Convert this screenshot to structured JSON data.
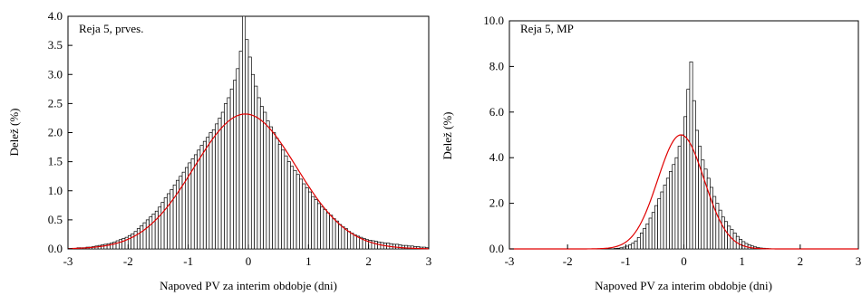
{
  "chart_data": [
    {
      "type": "bar",
      "panel_label": "Reja 5, prves.",
      "xlabel": "Napoved PV za interim obdobje (dni)",
      "ylabel": "Delež (%)",
      "xlim": [
        -3,
        3
      ],
      "ylim": [
        0,
        4.0
      ],
      "xticks": [
        -3,
        -2,
        -1,
        0,
        1,
        2,
        3
      ],
      "yticks": [
        0.0,
        0.5,
        1.0,
        1.5,
        2.0,
        2.5,
        3.0,
        3.5,
        4.0
      ],
      "ytick_decimals": 1,
      "bin_width": 0.05,
      "bin_start": -3.0,
      "values": [
        0.01,
        0.01,
        0.01,
        0.02,
        0.02,
        0.02,
        0.03,
        0.03,
        0.04,
        0.05,
        0.06,
        0.07,
        0.08,
        0.09,
        0.1,
        0.12,
        0.14,
        0.16,
        0.18,
        0.2,
        0.23,
        0.26,
        0.3,
        0.35,
        0.4,
        0.45,
        0.5,
        0.55,
        0.6,
        0.65,
        0.72,
        0.8,
        0.88,
        0.95,
        1.02,
        1.1,
        1.18,
        1.25,
        1.32,
        1.4,
        1.48,
        1.55,
        1.62,
        1.7,
        1.78,
        1.85,
        1.92,
        2.0,
        2.05,
        2.15,
        2.25,
        2.35,
        2.5,
        2.6,
        2.75,
        2.9,
        3.1,
        3.4,
        4.0,
        3.6,
        3.3,
        3.0,
        2.8,
        2.6,
        2.45,
        2.35,
        2.2,
        2.1,
        2.0,
        1.9,
        1.8,
        1.7,
        1.6,
        1.5,
        1.42,
        1.35,
        1.28,
        1.2,
        1.12,
        1.05,
        0.98,
        0.9,
        0.85,
        0.78,
        0.72,
        0.68,
        0.62,
        0.58,
        0.52,
        0.48,
        0.42,
        0.38,
        0.35,
        0.3,
        0.27,
        0.24,
        0.22,
        0.2,
        0.18,
        0.16,
        0.15,
        0.14,
        0.13,
        0.12,
        0.11,
        0.1,
        0.1,
        0.09,
        0.08,
        0.08,
        0.07,
        0.06,
        0.06,
        0.05,
        0.05,
        0.04,
        0.04,
        0.03,
        0.03,
        0.02
      ],
      "fit_curve": {
        "type": "normal",
        "mean": -0.05,
        "sd": 0.85,
        "peak": 2.32,
        "color": "#e00000"
      }
    },
    {
      "type": "bar",
      "panel_label": "Reja 5, MP",
      "xlabel": "Napoved PV za interim obdobje (dni)",
      "ylabel": "Delež (%)",
      "xlim": [
        -3,
        3
      ],
      "ylim": [
        0,
        10.0
      ],
      "xticks": [
        -3,
        -2,
        -1,
        0,
        1,
        2,
        3
      ],
      "yticks": [
        0.0,
        2.0,
        4.0,
        6.0,
        8.0,
        10.0
      ],
      "ytick_decimals": 1,
      "bin_width": 0.05,
      "bin_start": -1.2,
      "values": [
        0.02,
        0.03,
        0.05,
        0.08,
        0.12,
        0.18,
        0.25,
        0.35,
        0.5,
        0.7,
        0.9,
        1.1,
        1.35,
        1.6,
        1.9,
        2.2,
        2.5,
        2.8,
        3.1,
        3.4,
        3.7,
        4.0,
        4.5,
        5.0,
        5.8,
        7.0,
        8.2,
        6.5,
        5.2,
        4.5,
        3.9,
        3.5,
        3.1,
        2.7,
        2.3,
        2.0,
        1.7,
        1.4,
        1.2,
        1.0,
        0.85,
        0.7,
        0.55,
        0.42,
        0.32,
        0.24,
        0.18,
        0.13,
        0.09,
        0.06,
        0.04,
        0.03,
        0.02,
        0.01
      ],
      "fit_curve": {
        "type": "normal",
        "mean": -0.05,
        "sd": 0.4,
        "peak": 5.0,
        "color": "#e00000"
      }
    }
  ]
}
